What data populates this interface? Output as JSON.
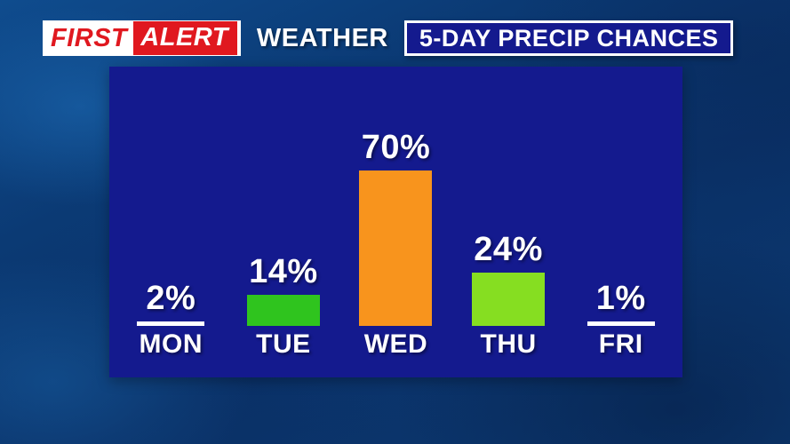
{
  "header": {
    "brand": {
      "first": "FIRST",
      "alert": "ALERT"
    },
    "section": "WEATHER",
    "title": "5-DAY PRECIP CHANCES"
  },
  "colors": {
    "background_blue": "#0b3a74",
    "panel_blue": "#141a8e",
    "brand_red": "#e0181f",
    "text_white": "#ffffff",
    "bar_orange": "#f8941d",
    "bar_green": "#2fc41e",
    "bar_lime": "#86de21"
  },
  "chart_data": {
    "type": "bar",
    "title": "5-DAY PRECIP CHANCES",
    "categories": [
      "MON",
      "TUE",
      "WED",
      "THU",
      "FRI"
    ],
    "values": [
      2,
      14,
      70,
      24,
      1
    ],
    "value_labels": [
      "2%",
      "14%",
      "70%",
      "24%",
      "1%"
    ],
    "bar_colors": [
      "none",
      "#2fc41e",
      "#f8941d",
      "#86de21",
      "none"
    ],
    "xlabel": "",
    "ylabel": "",
    "ylim": [
      0,
      100
    ],
    "grid": false,
    "legend": "none",
    "no_bar_style": "white underline shown for days with near-zero chance"
  }
}
